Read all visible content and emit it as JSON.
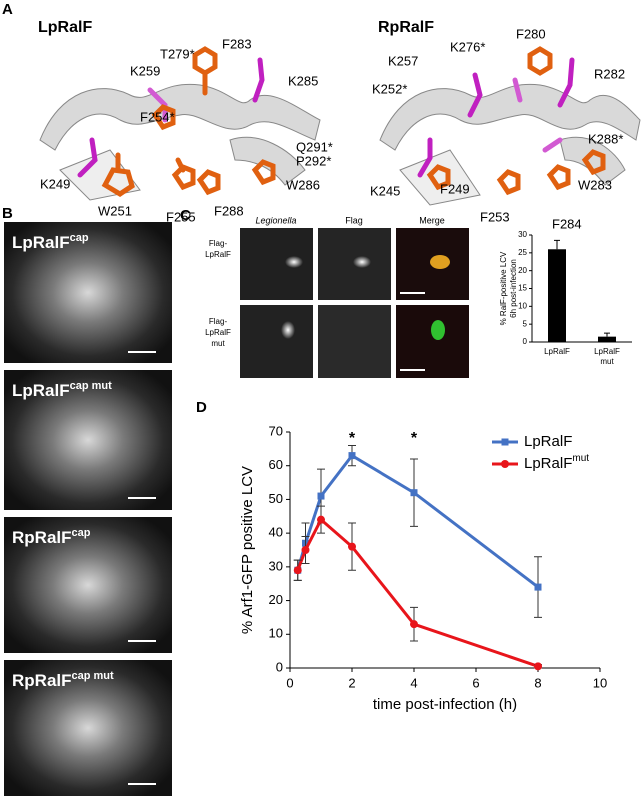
{
  "panel_labels": [
    "A",
    "B",
    "C",
    "D"
  ],
  "structures": [
    {
      "title": "LpRalF",
      "residues": [
        "K259",
        "T279*",
        "F283",
        "K285",
        "F254*",
        "Q291*",
        "P292*",
        "K249",
        "W251",
        "F255",
        "F288",
        "W286"
      ]
    },
    {
      "title": "RpRalF",
      "residues": [
        "K257",
        "K276*",
        "F280",
        "R282",
        "K252*",
        "K288*",
        "K245",
        "F249",
        "F253",
        "W283",
        "F284"
      ]
    }
  ],
  "micrographs": [
    {
      "label": "LpRalF",
      "sup": "cap"
    },
    {
      "label": "LpRalF",
      "sup": "cap mut"
    },
    {
      "label": "RpRalF",
      "sup": "cap"
    },
    {
      "label": "RpRalF",
      "sup": "cap mut"
    }
  ],
  "image_columns": [
    "Legionella",
    "Flag",
    "Merge"
  ],
  "image_rows": [
    [
      "Flag-",
      "LpRalF"
    ],
    [
      "Flag-",
      "LpRalF",
      "mut"
    ]
  ],
  "chart_data": [
    {
      "type": "bar",
      "y_label": [
        "% RalF-positive LCV",
        "6h post-infection"
      ],
      "categories": [
        [
          "LpRalF"
        ],
        [
          "LpRalF",
          "mut"
        ]
      ],
      "values": [
        26,
        1.5
      ],
      "errors": [
        2.5,
        1
      ],
      "color": "#000000",
      "ylim": [
        0,
        30
      ],
      "yticks": [
        0,
        5,
        10,
        15,
        20,
        25,
        30
      ]
    },
    {
      "type": "line",
      "x_label": "time post-infection (h)",
      "y_label": "% Arf1-GFP positive LCV",
      "x": [
        0.25,
        0.5,
        1,
        2,
        4,
        8
      ],
      "series": [
        {
          "name": "LpRalF",
          "color": "#4472c4",
          "marker": "square",
          "values": [
            29,
            37,
            51,
            63,
            52,
            24
          ],
          "errors": [
            3,
            6,
            8,
            3,
            10,
            9
          ]
        },
        {
          "name": "LpRalF",
          "sup": "mut",
          "color": "#e8151b",
          "marker": "circle",
          "values": [
            29,
            35,
            44,
            36,
            13,
            0.5
          ],
          "errors": [
            3,
            4,
            4,
            7,
            5,
            0.5
          ]
        }
      ],
      "annotations": [
        {
          "x": 2,
          "y": 68,
          "text": "*"
        },
        {
          "x": 4,
          "y": 68,
          "text": "*"
        }
      ],
      "xlim": [
        0,
        10
      ],
      "xticks": [
        0,
        2,
        4,
        6,
        8,
        10
      ],
      "ylim": [
        0,
        70
      ],
      "yticks": [
        0,
        10,
        20,
        30,
        40,
        50,
        60,
        70
      ]
    }
  ]
}
